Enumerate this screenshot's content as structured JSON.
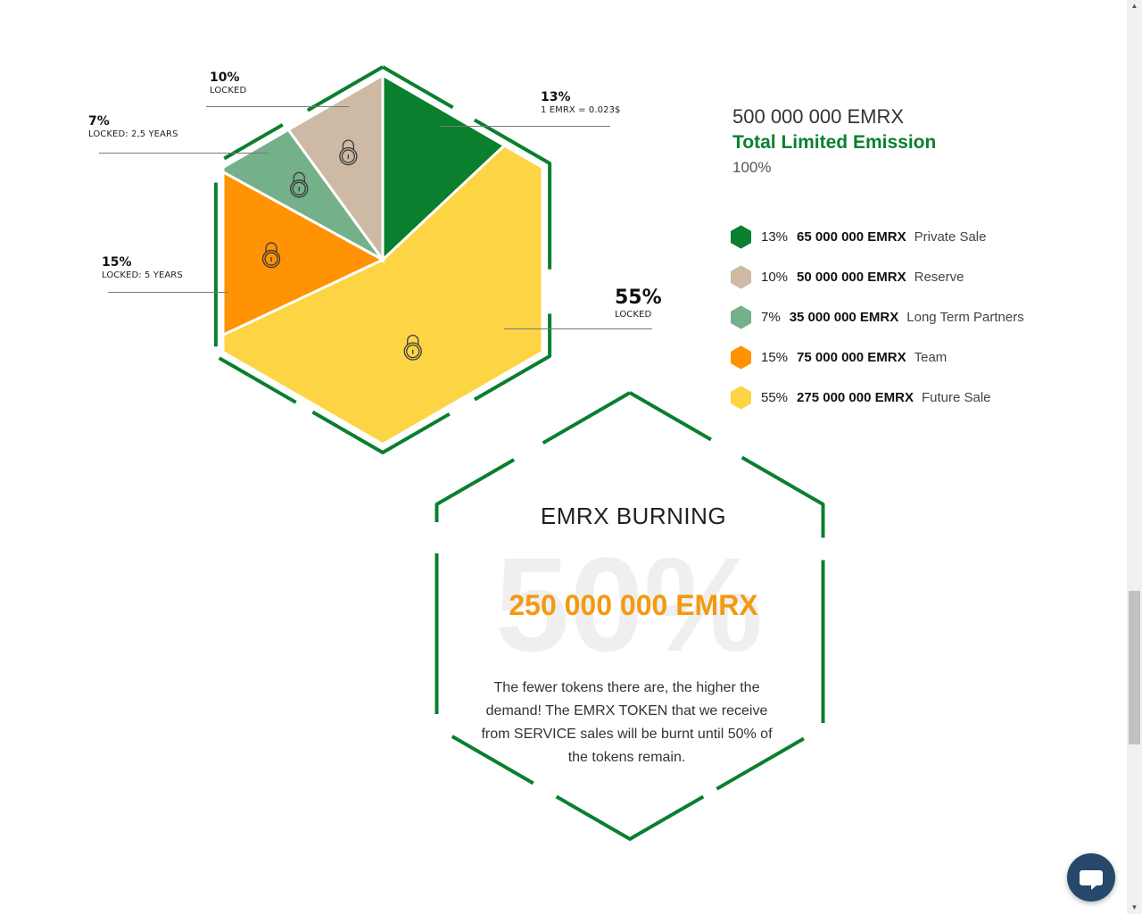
{
  "chart_data": {
    "type": "pie",
    "title": "Total Limited Emission",
    "total_label": "500 000 000 EMRX",
    "total_percent": "100%",
    "slices": [
      {
        "label": "Private Sale",
        "value": 13,
        "amount": "65 000 000 EMRX",
        "percent_text": "13%",
        "note": "1 EMRX = 0.023$",
        "color": "#0a7f2e",
        "locked": false
      },
      {
        "label": "Future Sale",
        "value": 55,
        "amount": "275 000 000 EMRX",
        "percent_text": "55%",
        "note": "LOCKED",
        "color": "#fdd443",
        "locked": true
      },
      {
        "label": "Team",
        "value": 15,
        "amount": "75 000 000 EMRX",
        "percent_text": "15%",
        "note": "LOCKED: 5 YEARS",
        "color": "#ff9303",
        "locked": true
      },
      {
        "label": "Long Term Partners",
        "value": 7,
        "amount": "35 000 000 EMRX",
        "percent_text": "7%",
        "note": "LOCKED: 2,5 YEARS",
        "color": "#74b08a",
        "locked": true
      },
      {
        "label": "Reserve",
        "value": 10,
        "amount": "50 000 000 EMRX",
        "percent_text": "10%",
        "note": "LOCKED",
        "color": "#cdb9a4",
        "locked": true
      }
    ],
    "legend_order": [
      0,
      4,
      3,
      2,
      1
    ],
    "legend_position": "right"
  },
  "burning": {
    "title": "EMRX BURNING",
    "background_text": "50%",
    "amount": "250 000 000 EMRX",
    "text": "The fewer tokens there are, the higher the demand! The EMRX TOKEN that we receive from SERVICE sales will be burnt until 50% of the tokens remain."
  },
  "colors": {
    "accent": "#0a7f2e",
    "orange": "#f39a12"
  },
  "chat": {
    "icon": "chat-bubble-icon"
  }
}
